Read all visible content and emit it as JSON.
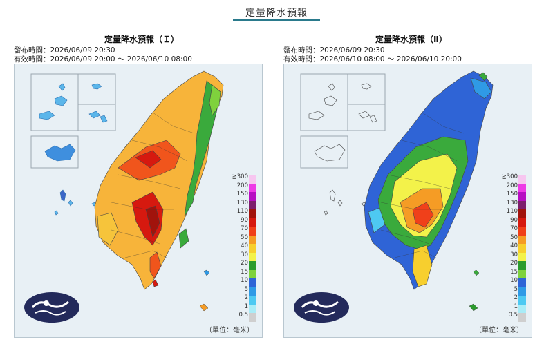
{
  "page": {
    "title": "定量降水預報"
  },
  "panels": [
    {
      "heading": "定量降水預報（Ｉ）",
      "issue": "發布時間：2026/06/09 20:30",
      "valid": "有效時間：2026/06/09 20:00 ～ 2026/06/10 08:00",
      "unit": "（單位：毫米）"
    },
    {
      "heading": "定量降水預報（Ⅱ）",
      "issue": "發布時間：2026/06/09 20:30",
      "valid": "有效時間：2026/06/10 08:00 ～ 2026/06/10 20:00",
      "unit": "（單位：毫米）"
    }
  ],
  "legend": [
    {
      "label": "≧300",
      "color": "#f7c6f0"
    },
    {
      "label": "200",
      "color": "#ee3ae6"
    },
    {
      "label": "150",
      "color": "#b70fc2"
    },
    {
      "label": "130",
      "color": "#7d1f6d"
    },
    {
      "label": "110",
      "color": "#a1130c"
    },
    {
      "label": "90",
      "color": "#d6190f"
    },
    {
      "label": "70",
      "color": "#f0401a"
    },
    {
      "label": "50",
      "color": "#f59c25"
    },
    {
      "label": "40",
      "color": "#f7cf2e"
    },
    {
      "label": "30",
      "color": "#f3f24a"
    },
    {
      "label": "20",
      "color": "#2a9b2d"
    },
    {
      "label": "15",
      "color": "#7fd23d"
    },
    {
      "label": "10",
      "color": "#2f64d6"
    },
    {
      "label": "5",
      "color": "#2f9ae6"
    },
    {
      "label": "2",
      "color": "#4ec9f2"
    },
    {
      "label": "1",
      "color": "#a9ecf7"
    },
    {
      "label": "0.5",
      "color": "#cfcfcf"
    }
  ],
  "colors": {
    "map_bg": "#e8f0f5",
    "logo": "#232a5b",
    "title_rule": "#2a7a8c"
  }
}
